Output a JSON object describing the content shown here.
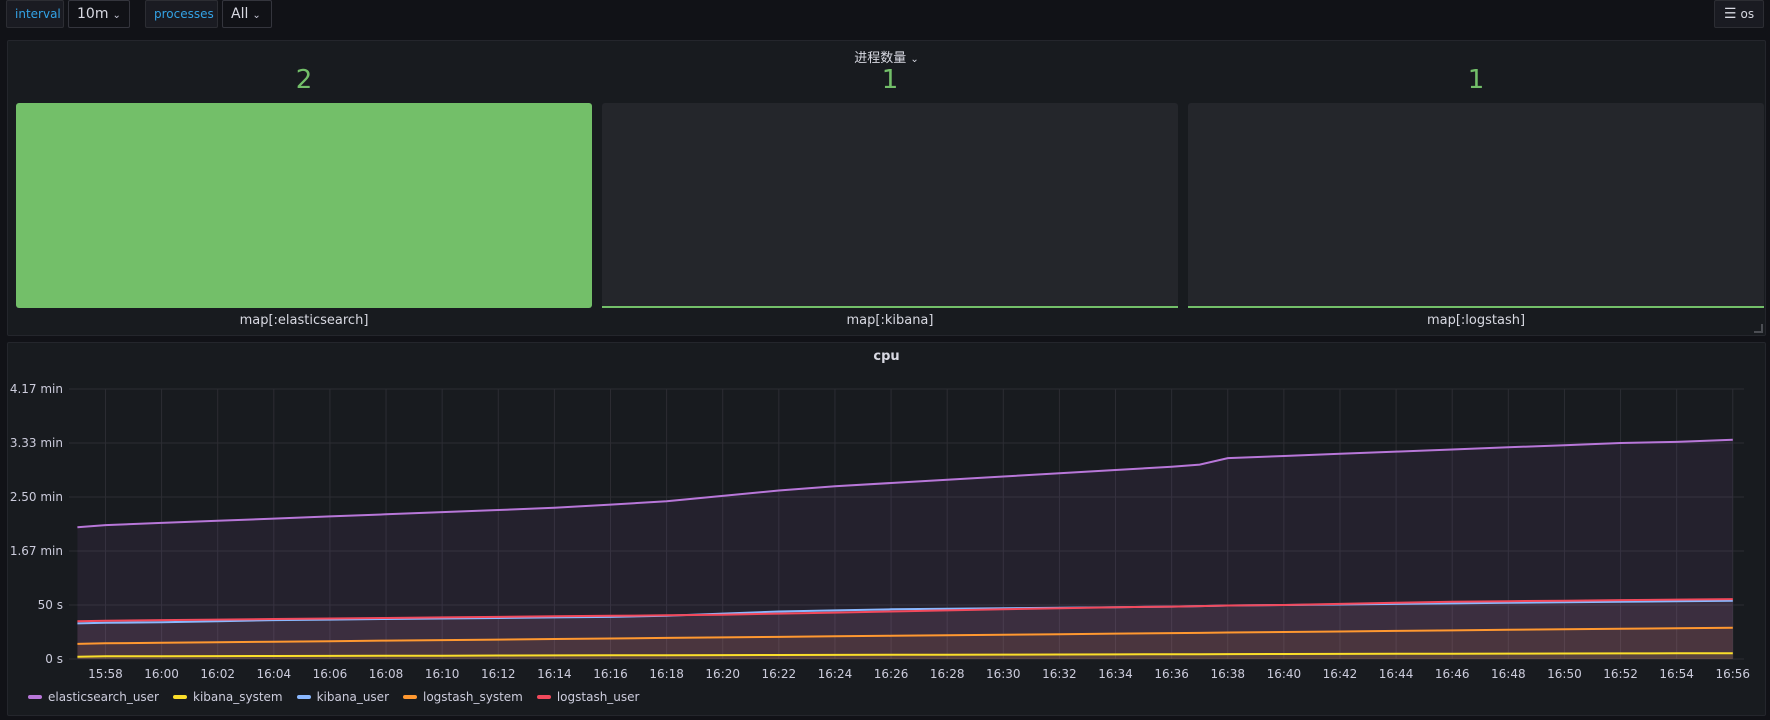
{
  "variables": {
    "interval": {
      "label": "interval",
      "value": "10m"
    },
    "processes": {
      "label": "processes",
      "value": "All"
    }
  },
  "topright": {
    "label": "os",
    "icon": "menu-icon"
  },
  "gauge_panel": {
    "title": "进程数量",
    "bars": [
      {
        "label": "map[:elasticsearch]",
        "value": "2",
        "fill": 1.0
      },
      {
        "label": "map[:kibana]",
        "value": "1",
        "fill": 0.0
      },
      {
        "label": "map[:logstash]",
        "value": "1",
        "fill": 0.0
      }
    ],
    "color": "#73bf69"
  },
  "cpu_panel": {
    "title": "cpu"
  },
  "chart_data": {
    "type": "line",
    "title": "cpu",
    "x": [
      "15:57",
      "15:58",
      "16:00",
      "16:02",
      "16:04",
      "16:06",
      "16:08",
      "16:10",
      "16:12",
      "16:14",
      "16:16",
      "16:18",
      "16:20",
      "16:22",
      "16:24",
      "16:26",
      "16:28",
      "16:30",
      "16:32",
      "16:34",
      "16:36",
      "16:37",
      "16:38",
      "16:40",
      "16:42",
      "16:44",
      "16:46",
      "16:48",
      "16:50",
      "16:52",
      "16:54",
      "16:56"
    ],
    "x_ticks": [
      "15:58",
      "16:00",
      "16:02",
      "16:04",
      "16:06",
      "16:08",
      "16:10",
      "16:12",
      "16:14",
      "16:16",
      "16:18",
      "16:20",
      "16:22",
      "16:24",
      "16:26",
      "16:28",
      "16:30",
      "16:32",
      "16:34",
      "16:36",
      "16:38",
      "16:40",
      "16:42",
      "16:44",
      "16:46",
      "16:48",
      "16:50",
      "16:52",
      "16:54",
      "16:56"
    ],
    "y_ticks": [
      "0 s",
      "50 s",
      "1.67 min",
      "2.50 min",
      "3.33 min",
      "4.17 min"
    ],
    "y_tick_values": [
      0,
      50,
      100,
      150,
      200,
      250
    ],
    "ylim": [
      0,
      250
    ],
    "grid": true,
    "legend_position": "bottom-left",
    "series": [
      {
        "name": "elasticsearch_user",
        "color": "#b877d9",
        "values": [
          122,
          124,
          126,
          128,
          130,
          132,
          134,
          136,
          138,
          140,
          143,
          146,
          151,
          156,
          160,
          163,
          166,
          169,
          172,
          175,
          178,
          180,
          186,
          188,
          190,
          192,
          194,
          196,
          198,
          200,
          201,
          203
        ]
      },
      {
        "name": "kibana_system",
        "color": "#fade2a",
        "values": [
          2,
          2.5,
          2.6,
          2.7,
          2.8,
          2.9,
          3.0,
          3.1,
          3.2,
          3.3,
          3.4,
          3.5,
          3.6,
          3.7,
          3.8,
          3.9,
          4.0,
          4.1,
          4.2,
          4.3,
          4.4,
          4.4,
          4.5,
          4.6,
          4.7,
          4.8,
          4.9,
          5.0,
          5.1,
          5.2,
          5.3,
          5.4
        ]
      },
      {
        "name": "kibana_user",
        "color": "#8ab8ff",
        "values": [
          33,
          33.5,
          34,
          35,
          36,
          36.5,
          37,
          37.5,
          38,
          38.5,
          39,
          40,
          42,
          44,
          45,
          46,
          46.5,
          47,
          47.5,
          48,
          48.5,
          49,
          49.5,
          50,
          50.5,
          51,
          51.5,
          52,
          52.5,
          53,
          53.5,
          54
        ]
      },
      {
        "name": "logstash_system",
        "color": "#ff9830",
        "values": [
          14,
          14.5,
          15,
          15.5,
          16,
          16.5,
          17,
          17.5,
          18,
          18.5,
          19,
          19.5,
          20,
          20.5,
          21,
          21.5,
          22,
          22.5,
          23,
          23.5,
          24,
          24.2,
          24.5,
          25,
          25.5,
          26,
          26.5,
          27,
          27.5,
          28,
          28.5,
          29
        ]
      },
      {
        "name": "logstash_user",
        "color": "#f2495c",
        "values": [
          35,
          35.5,
          36,
          36.5,
          37,
          37.5,
          38,
          38.5,
          39,
          39.5,
          40,
          40.5,
          41,
          42,
          43,
          44,
          45,
          46,
          47,
          48,
          48.5,
          49,
          49.5,
          50,
          51,
          52,
          53,
          53.5,
          54,
          54.5,
          55,
          55.5
        ]
      }
    ]
  }
}
